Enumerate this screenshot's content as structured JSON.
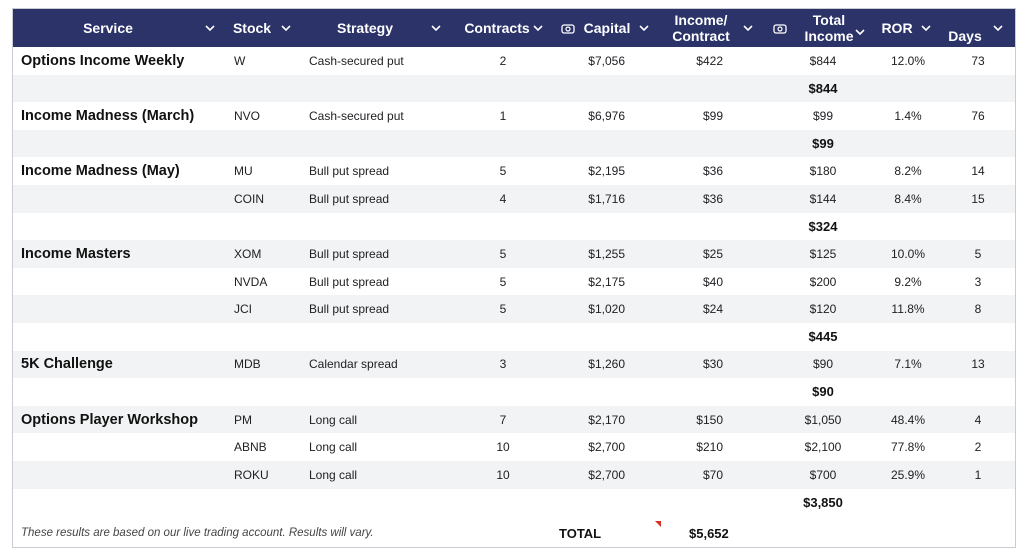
{
  "header": {
    "service": "Service",
    "stock": "Stock",
    "strategy": "Strategy",
    "contracts": "Contracts",
    "capital": "Capital",
    "income_contract_1": "Income/",
    "income_contract_2": "Contract",
    "total_income_1": "Total",
    "total_income_2": "Income",
    "ror": "ROR",
    "days": "Days"
  },
  "rows": [
    {
      "service": "Options Income Weekly",
      "stock": "W",
      "strategy": "Cash-secured put",
      "contracts": "2",
      "capital": "$7,056",
      "income": "$422",
      "total": "$844",
      "ror": "12.0%",
      "days": "73"
    },
    {
      "subtotal": "$844"
    },
    {
      "service": "Income Madness (March)",
      "stock": "NVO",
      "strategy": "Cash-secured put",
      "contracts": "1",
      "capital": "$6,976",
      "income": "$99",
      "total": "$99",
      "ror": "1.4%",
      "days": "76"
    },
    {
      "subtotal": "$99"
    },
    {
      "service": "Income Madness (May)",
      "stock": "MU",
      "strategy": "Bull put spread",
      "contracts": "5",
      "capital": "$2,195",
      "income": "$36",
      "total": "$180",
      "ror": "8.2%",
      "days": "14"
    },
    {
      "service": "",
      "stock": "COIN",
      "strategy": "Bull put spread",
      "contracts": "4",
      "capital": "$1,716",
      "income": "$36",
      "total": "$144",
      "ror": "8.4%",
      "days": "15"
    },
    {
      "subtotal": "$324"
    },
    {
      "service": "Income Masters",
      "stock": "XOM",
      "strategy": "Bull put spread",
      "contracts": "5",
      "capital": "$1,255",
      "income": "$25",
      "total": "$125",
      "ror": "10.0%",
      "days": "5"
    },
    {
      "service": "",
      "stock": "NVDA",
      "strategy": "Bull put spread",
      "contracts": "5",
      "capital": "$2,175",
      "income": "$40",
      "total": "$200",
      "ror": "9.2%",
      "days": "3"
    },
    {
      "service": "",
      "stock": "JCI",
      "strategy": "Bull put spread",
      "contracts": "5",
      "capital": "$1,020",
      "income": "$24",
      "total": "$120",
      "ror": "11.8%",
      "days": "8"
    },
    {
      "subtotal": "$445"
    },
    {
      "service": "5K Challenge",
      "stock": "MDB",
      "strategy": "Calendar spread",
      "contracts": "3",
      "capital": "$1,260",
      "income": "$30",
      "total": "$90",
      "ror": "7.1%",
      "days": "13"
    },
    {
      "subtotal": "$90"
    },
    {
      "service": "Options Player Workshop",
      "stock": "PM",
      "strategy": "Long call",
      "contracts": "7",
      "capital": "$2,170",
      "income": "$150",
      "total": "$1,050",
      "ror": "48.4%",
      "days": "4"
    },
    {
      "service": "",
      "stock": "ABNB",
      "strategy": "Long call",
      "contracts": "10",
      "capital": "$2,700",
      "income": "$210",
      "total": "$2,100",
      "ror": "77.8%",
      "days": "2"
    },
    {
      "service": "",
      "stock": "ROKU",
      "strategy": "Long call",
      "contracts": "10",
      "capital": "$2,700",
      "income": "$70",
      "total": "$700",
      "ror": "25.9%",
      "days": "1"
    },
    {
      "subtotal": "$3,850"
    }
  ],
  "footer": {
    "note": "These results are based on our live trading account. Results will vary.",
    "total_label": "TOTAL",
    "total_value": "$5,652"
  },
  "colors": {
    "header_bg": "#2b3369",
    "header_text": "#ffffff",
    "row_alt": "#f1f3f4",
    "comment_marker": "#d93025"
  },
  "icons": [
    "chevron-down-icon",
    "currency-icon"
  ]
}
